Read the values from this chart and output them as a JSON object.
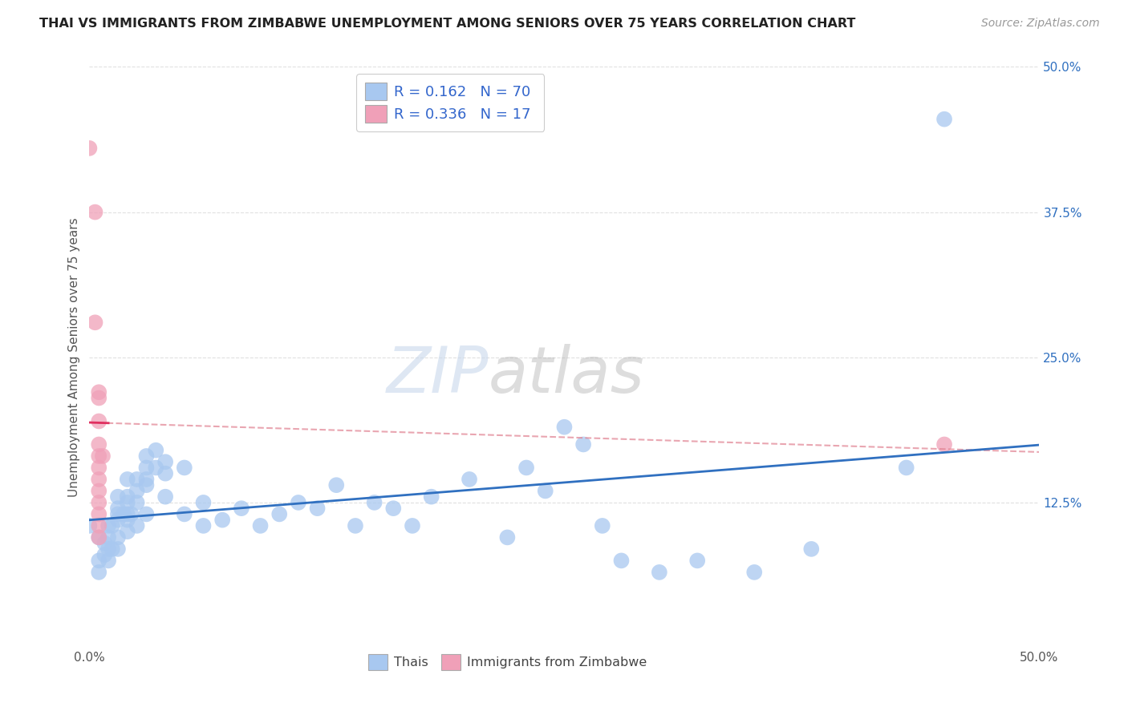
{
  "title": "THAI VS IMMIGRANTS FROM ZIMBABWE UNEMPLOYMENT AMONG SENIORS OVER 75 YEARS CORRELATION CHART",
  "source": "Source: ZipAtlas.com",
  "ylabel": "Unemployment Among Seniors over 75 years",
  "xmin": 0.0,
  "xmax": 0.5,
  "ymin": 0.0,
  "ymax": 0.5,
  "blue_R": 0.162,
  "blue_N": 70,
  "pink_R": 0.336,
  "pink_N": 17,
  "blue_color": "#A8C8F0",
  "pink_color": "#F0A0B8",
  "blue_line_color": "#3070C0",
  "pink_line_color": "#E03060",
  "pink_dash_color": "#E08090",
  "legend_text_color": "#3366CC",
  "title_color": "#222222",
  "grid_color": "#DDDDDD",
  "watermark_zip": "ZIP",
  "watermark_atlas": "atlas",
  "thai_scatter": [
    [
      0.0,
      0.105
    ],
    [
      0.005,
      0.095
    ],
    [
      0.005,
      0.075
    ],
    [
      0.005,
      0.065
    ],
    [
      0.008,
      0.09
    ],
    [
      0.008,
      0.08
    ],
    [
      0.01,
      0.105
    ],
    [
      0.01,
      0.095
    ],
    [
      0.01,
      0.085
    ],
    [
      0.01,
      0.075
    ],
    [
      0.012,
      0.105
    ],
    [
      0.012,
      0.085
    ],
    [
      0.015,
      0.13
    ],
    [
      0.015,
      0.12
    ],
    [
      0.015,
      0.115
    ],
    [
      0.015,
      0.11
    ],
    [
      0.015,
      0.095
    ],
    [
      0.015,
      0.085
    ],
    [
      0.018,
      0.115
    ],
    [
      0.02,
      0.145
    ],
    [
      0.02,
      0.13
    ],
    [
      0.02,
      0.125
    ],
    [
      0.02,
      0.115
    ],
    [
      0.02,
      0.11
    ],
    [
      0.02,
      0.1
    ],
    [
      0.022,
      0.115
    ],
    [
      0.025,
      0.145
    ],
    [
      0.025,
      0.135
    ],
    [
      0.025,
      0.125
    ],
    [
      0.025,
      0.105
    ],
    [
      0.03,
      0.165
    ],
    [
      0.03,
      0.155
    ],
    [
      0.03,
      0.145
    ],
    [
      0.03,
      0.14
    ],
    [
      0.03,
      0.115
    ],
    [
      0.035,
      0.17
    ],
    [
      0.035,
      0.155
    ],
    [
      0.04,
      0.16
    ],
    [
      0.04,
      0.15
    ],
    [
      0.04,
      0.13
    ],
    [
      0.05,
      0.155
    ],
    [
      0.05,
      0.115
    ],
    [
      0.06,
      0.125
    ],
    [
      0.06,
      0.105
    ],
    [
      0.07,
      0.11
    ],
    [
      0.08,
      0.12
    ],
    [
      0.09,
      0.105
    ],
    [
      0.1,
      0.115
    ],
    [
      0.11,
      0.125
    ],
    [
      0.12,
      0.12
    ],
    [
      0.13,
      0.14
    ],
    [
      0.14,
      0.105
    ],
    [
      0.15,
      0.125
    ],
    [
      0.16,
      0.12
    ],
    [
      0.17,
      0.105
    ],
    [
      0.18,
      0.13
    ],
    [
      0.2,
      0.145
    ],
    [
      0.22,
      0.095
    ],
    [
      0.23,
      0.155
    ],
    [
      0.24,
      0.135
    ],
    [
      0.25,
      0.19
    ],
    [
      0.26,
      0.175
    ],
    [
      0.27,
      0.105
    ],
    [
      0.28,
      0.075
    ],
    [
      0.3,
      0.065
    ],
    [
      0.32,
      0.075
    ],
    [
      0.35,
      0.065
    ],
    [
      0.38,
      0.085
    ],
    [
      0.43,
      0.155
    ],
    [
      0.45,
      0.455
    ]
  ],
  "zimbabwe_scatter": [
    [
      0.0,
      0.43
    ],
    [
      0.003,
      0.375
    ],
    [
      0.003,
      0.28
    ],
    [
      0.005,
      0.22
    ],
    [
      0.005,
      0.215
    ],
    [
      0.005,
      0.195
    ],
    [
      0.005,
      0.175
    ],
    [
      0.005,
      0.165
    ],
    [
      0.005,
      0.155
    ],
    [
      0.005,
      0.145
    ],
    [
      0.005,
      0.135
    ],
    [
      0.005,
      0.125
    ],
    [
      0.005,
      0.115
    ],
    [
      0.005,
      0.105
    ],
    [
      0.005,
      0.095
    ],
    [
      0.007,
      0.165
    ],
    [
      0.45,
      0.175
    ]
  ]
}
